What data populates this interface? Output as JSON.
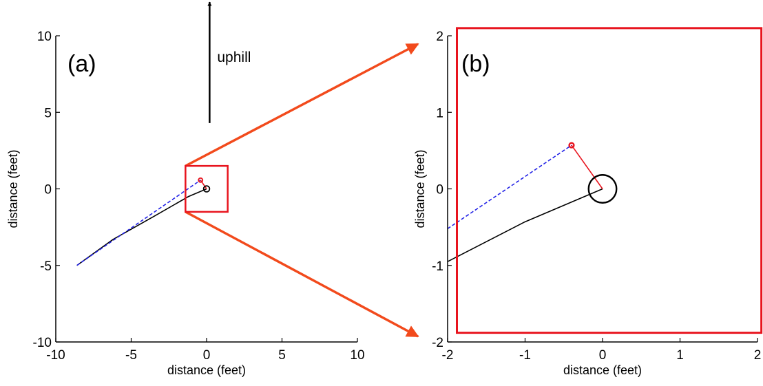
{
  "chart_data": [
    {
      "type": "line",
      "panel_label": "(a)",
      "xlabel": "distance (feet)",
      "ylabel": "distance (feet)",
      "xlim": [
        -10,
        10
      ],
      "ylim": [
        -10,
        10
      ],
      "xticks": [
        -10,
        -5,
        0,
        5,
        10
      ],
      "yticks": [
        -10,
        -5,
        0,
        5,
        10
      ],
      "grid": false,
      "annotation": {
        "text": "uphill",
        "arrow_from": [
          0.2,
          4.3
        ],
        "arrow_to": [
          0.2,
          12.2
        ]
      },
      "zoom_box": {
        "xlim": [
          -1.4,
          1.4
        ],
        "ylim": [
          -1.5,
          1.5
        ],
        "color": "#e8141e"
      },
      "series": [
        {
          "style": "solid",
          "color": "#000000",
          "x": [
            -8.6,
            -6.2,
            -3.5,
            -1.2,
            0.0
          ],
          "y": [
            -5.0,
            -3.3,
            -1.8,
            -0.5,
            0.0
          ]
        },
        {
          "style": "dashed",
          "color": "#2323e6",
          "x": [
            -8.6,
            -0.4
          ],
          "y": [
            -5.0,
            0.57
          ]
        },
        {
          "style": "solid",
          "color": "#e8141e",
          "x": [
            -0.4,
            0.0
          ],
          "y": [
            0.57,
            0.0
          ]
        }
      ],
      "markers": [
        {
          "shape": "circle",
          "color": "#e8141e",
          "x": -0.4,
          "y": 0.57,
          "r": 0.1
        },
        {
          "shape": "circle",
          "color": "#000000",
          "x": 0.0,
          "y": 0.0,
          "r": 0.2
        }
      ]
    },
    {
      "type": "line",
      "panel_label": "(b)",
      "xlabel": "distance (feet)",
      "ylabel": "distance (feet)",
      "xlim": [
        -2,
        2
      ],
      "ylim": [
        -2,
        2
      ],
      "xticks": [
        -2,
        -1,
        0,
        1,
        2
      ],
      "yticks": [
        -2,
        -1,
        0,
        1,
        2
      ],
      "grid": false,
      "frame": {
        "xlim": [
          -1.88,
          2.05
        ],
        "ylim": [
          -1.88,
          2.1
        ],
        "color": "#e8141e"
      },
      "series": [
        {
          "style": "solid",
          "color": "#000000",
          "x": [
            -2.0,
            -1.0,
            0.0
          ],
          "y": [
            -0.95,
            -0.43,
            0.0
          ]
        },
        {
          "style": "dashed",
          "color": "#2323e6",
          "x": [
            -2.0,
            -0.4
          ],
          "y": [
            -0.52,
            0.57
          ]
        },
        {
          "style": "solid",
          "color": "#e8141e",
          "x": [
            -0.4,
            0.0
          ],
          "y": [
            0.57,
            0.0
          ]
        }
      ],
      "markers": [
        {
          "shape": "circle",
          "color": "#e8141e",
          "x": -0.4,
          "y": 0.57,
          "r": 0.03
        },
        {
          "shape": "circle",
          "color": "#000000",
          "x": 0.0,
          "y": 0.0,
          "r": 0.18
        }
      ]
    }
  ],
  "colors": {
    "zoom_arrow": "#f24a1c"
  }
}
